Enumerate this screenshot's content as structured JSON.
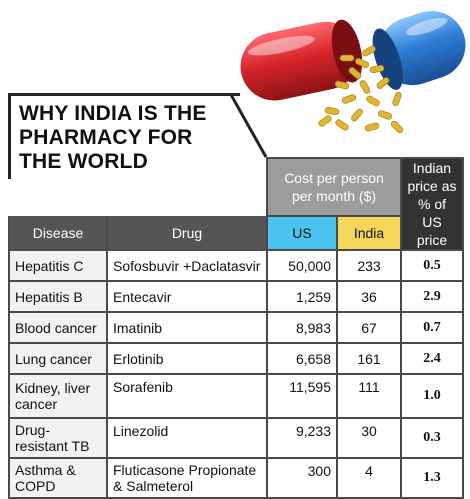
{
  "title": "WHY INDIA IS THE PHARMACY FOR THE WORLD",
  "title_lines": [
    "WHY INDIA IS THE",
    "PHARMACY FOR",
    "THE WORLD"
  ],
  "headers": {
    "disease": "Disease",
    "drug": "Drug",
    "cost": "Cost per person per month ($)",
    "us": "US",
    "india": "India",
    "pct": "Indian price as % of US price"
  },
  "rows": [
    {
      "disease": "Hepatitis C",
      "drug": "Sofosbuvir +Daclatasvir",
      "us": "50,000",
      "india": "233",
      "pct": "0.5"
    },
    {
      "disease": "Hepatitis B",
      "drug": "Entecavir",
      "us": "1,259",
      "india": "36",
      "pct": "2.9"
    },
    {
      "disease": "Blood cancer",
      "drug": "Imatinib",
      "us": "8,983",
      "india": "67",
      "pct": "0.7"
    },
    {
      "disease": "Lung cancer",
      "drug": "Erlotinib",
      "us": "6,658",
      "india": "161",
      "pct": "2.4"
    },
    {
      "disease": "Kidney, liver cancer",
      "drug": "Sorafenib",
      "us": "11,595",
      "india": "111",
      "pct": "1.0"
    },
    {
      "disease": "Drug-resistant TB",
      "drug": "Linezolid",
      "us": "9,233",
      "india": "30",
      "pct": "0.3"
    },
    {
      "disease": "Asthma & COPD",
      "drug": "Fluticasone Propionate & Salmeterol",
      "us": "300",
      "india": "4",
      "pct": "1.3"
    }
  ],
  "colors": {
    "us_header": "#4cc2f0",
    "india_header": "#f4d65a",
    "dark_header": "#555555",
    "pct_header": "#333333",
    "capsule_red": "#d8262b",
    "capsule_blue": "#2f7fd6",
    "granules": "#e0b430"
  },
  "icons": {
    "illustration": "capsule-pill-icon"
  }
}
